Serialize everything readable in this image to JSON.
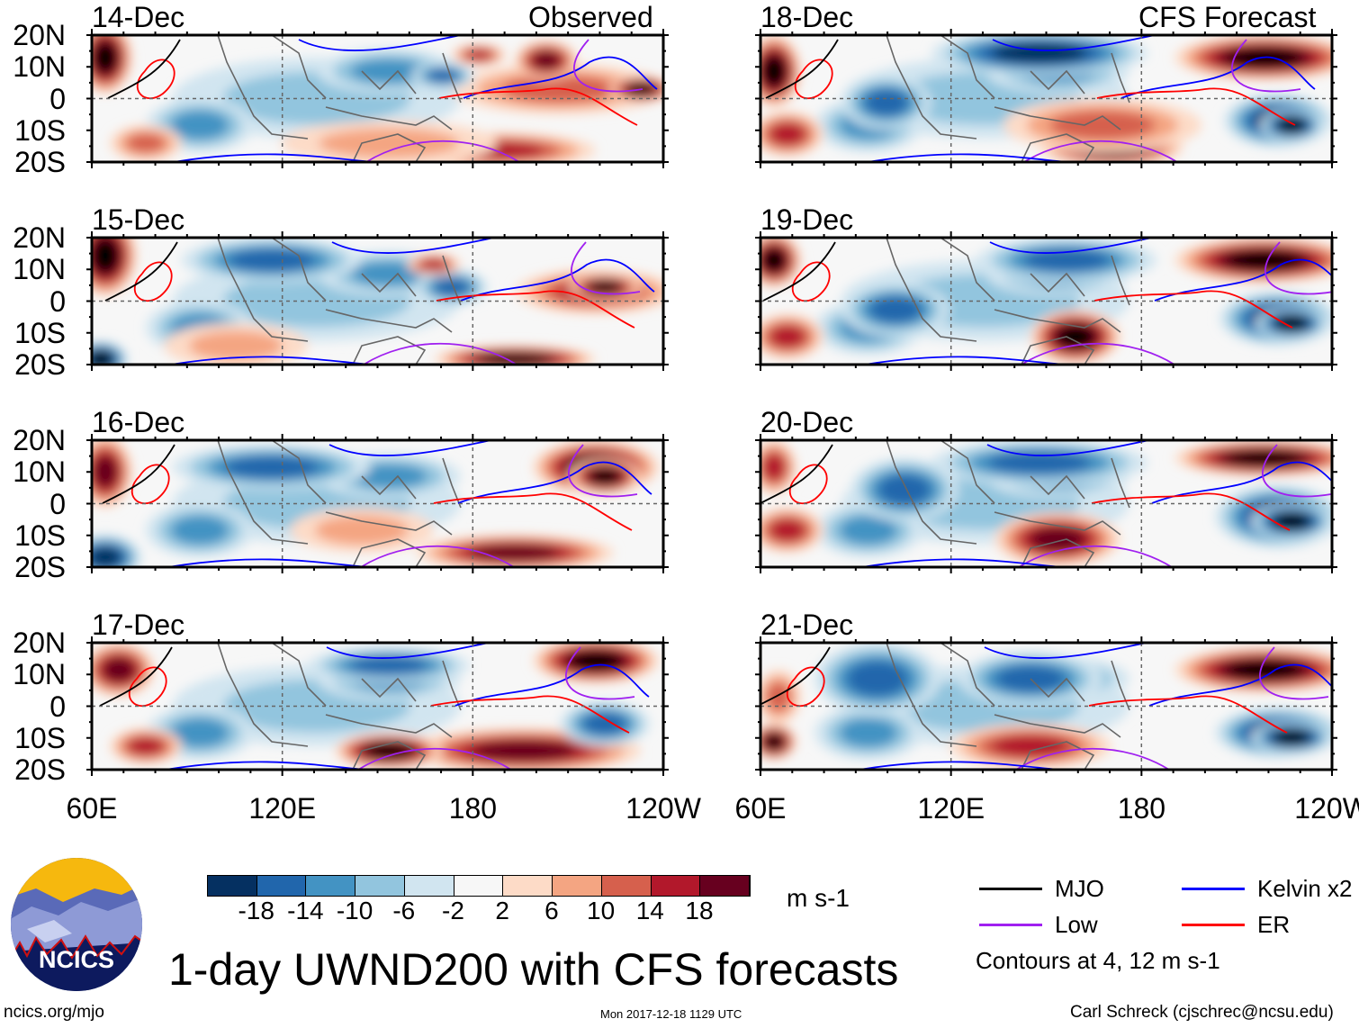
{
  "figure_title": "1-day UWND200 with CFS forecasts",
  "left_column_label": "Observed",
  "right_column_label": "CFS Forecast",
  "panels_left": [
    "14-Dec",
    "15-Dec",
    "16-Dec",
    "17-Dec"
  ],
  "panels_right": [
    "18-Dec",
    "19-Dec",
    "20-Dec",
    "21-Dec"
  ],
  "lat_labels": [
    "20N",
    "10N",
    "0",
    "10S",
    "20S"
  ],
  "lon_labels": [
    "60E",
    "120E",
    "180",
    "120W"
  ],
  "colorbar": {
    "colors": [
      "#053061",
      "#2166ac",
      "#4393c3",
      "#92c5de",
      "#d1e5f0",
      "#f7f7f7",
      "#fddbc7",
      "#f4a582",
      "#d6604d",
      "#b2182b",
      "#67001f"
    ],
    "labels": [
      "-18",
      "-14",
      "-10",
      "-6",
      "-2",
      "2",
      "6",
      "10",
      "14",
      "18"
    ],
    "units": "m s-1"
  },
  "legend": {
    "items": [
      {
        "label": "MJO",
        "color": "#000000"
      },
      {
        "label": "Kelvin x2",
        "color": "#0000ff"
      },
      {
        "label": "Low",
        "color": "#a020f0"
      },
      {
        "label": "ER",
        "color": "#ff0000"
      }
    ],
    "note": "Contours at 4, 12 m s-1"
  },
  "logo_text": "NCICS",
  "footer": {
    "url": "ncics.org/mjo",
    "timestamp": "Mon 2017-12-18 1129 UTC",
    "author": "Carl Schreck (cjschrec@ncsu.edu)"
  }
}
